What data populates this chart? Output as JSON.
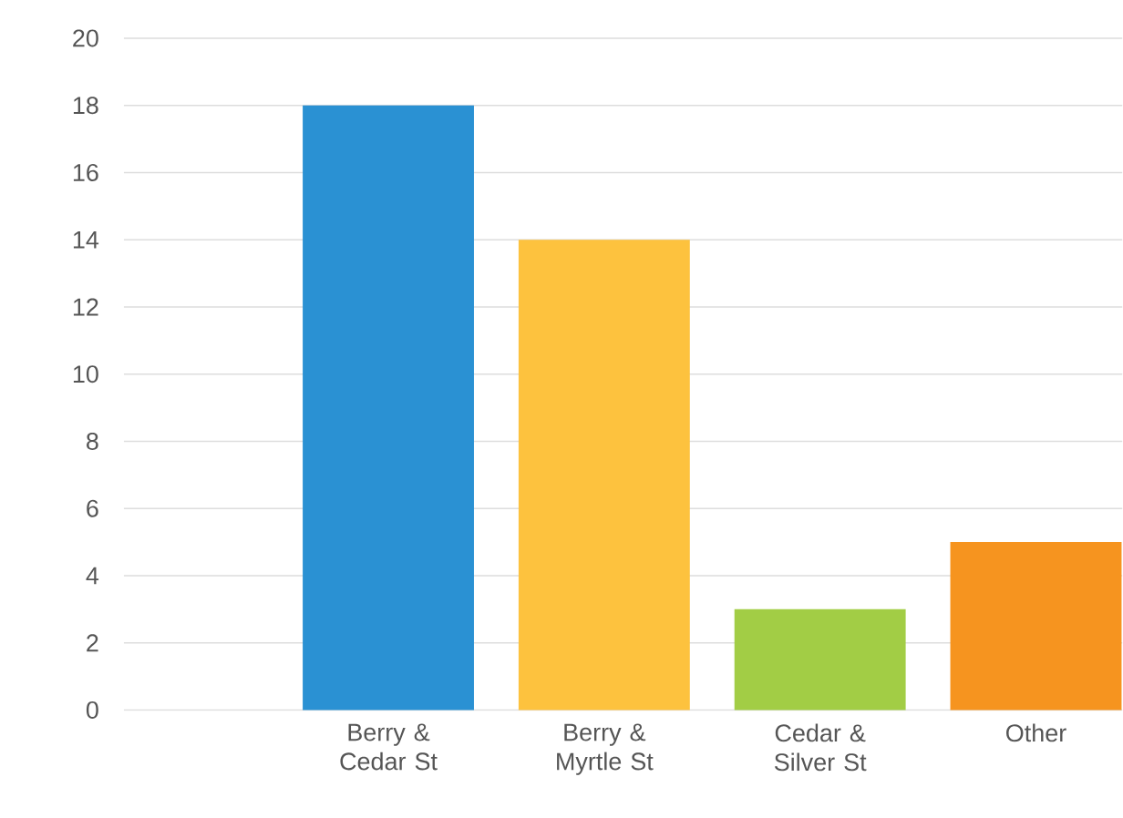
{
  "chart_data": {
    "type": "bar",
    "categories": [
      "Berry & Cedar St",
      "Berry & Myrtle St",
      "Cedar & Silver St",
      "Other"
    ],
    "values": [
      18,
      14,
      3,
      5
    ],
    "colors": [
      "#2a91d3",
      "#fdc23e",
      "#a2cd45",
      "#f6941f"
    ],
    "ylim": [
      0,
      20
    ],
    "yticks": [
      0,
      2,
      4,
      6,
      8,
      10,
      12,
      14,
      16,
      18,
      20
    ],
    "grid": "y"
  }
}
